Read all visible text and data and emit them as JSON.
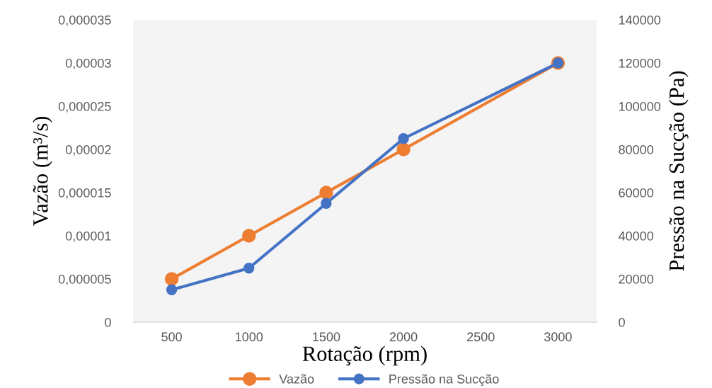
{
  "chart_data": {
    "type": "line",
    "xlabel": "Rotação (rpm)",
    "ylabel": "Vazão (m³/s)",
    "y2label": "Pressão na Sucção (Pa)",
    "x": [
      500,
      1000,
      1500,
      2000,
      3000
    ],
    "xlim": [
      250,
      3250
    ],
    "xticks": [
      500,
      1000,
      1500,
      2000,
      2500,
      3000
    ],
    "ylim": [
      0,
      3.5e-05
    ],
    "yticks": [
      {
        "value": 0,
        "label": "0"
      },
      {
        "value": 5e-06,
        "label": "0,000005"
      },
      {
        "value": 1e-05,
        "label": "0,00001"
      },
      {
        "value": 1.5e-05,
        "label": "0,000015"
      },
      {
        "value": 2e-05,
        "label": "0,00002"
      },
      {
        "value": 2.5e-05,
        "label": "0,000025"
      },
      {
        "value": 3e-05,
        "label": "0,00003"
      },
      {
        "value": 3.5e-05,
        "label": "0,000035"
      }
    ],
    "y2lim": [
      0,
      140000
    ],
    "y2ticks": [
      0,
      20000,
      40000,
      60000,
      80000,
      100000,
      120000,
      140000
    ],
    "series": [
      {
        "name": "Vazão",
        "color": "#ed7d31",
        "values": [
          5e-06,
          1e-05,
          1.5e-05,
          2e-05,
          3e-05
        ]
      },
      {
        "name": "Pressão na Sucção",
        "color": "#4472c4",
        "axis": "y2",
        "values": [
          15000,
          25000,
          55000,
          85000,
          120000
        ]
      }
    ],
    "marker": "circle",
    "line_style": "solid",
    "grid": false,
    "legend": "bottom"
  }
}
